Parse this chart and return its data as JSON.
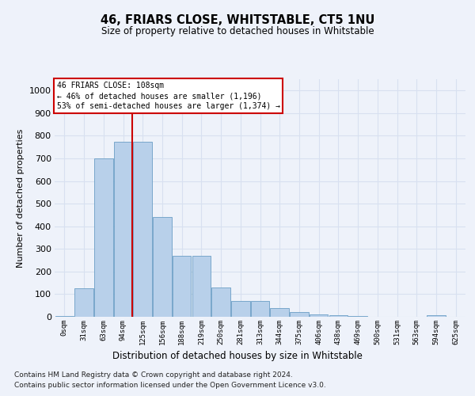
{
  "title": "46, FRIARS CLOSE, WHITSTABLE, CT5 1NU",
  "subtitle": "Size of property relative to detached houses in Whitstable",
  "xlabel": "Distribution of detached houses by size in Whitstable",
  "ylabel": "Number of detached properties",
  "bar_labels": [
    "0sqm",
    "31sqm",
    "63sqm",
    "94sqm",
    "125sqm",
    "156sqm",
    "188sqm",
    "219sqm",
    "250sqm",
    "281sqm",
    "313sqm",
    "344sqm",
    "375sqm",
    "406sqm",
    "438sqm",
    "469sqm",
    "500sqm",
    "531sqm",
    "563sqm",
    "594sqm",
    "625sqm"
  ],
  "bar_values": [
    5,
    125,
    700,
    775,
    775,
    440,
    270,
    270,
    130,
    70,
    70,
    38,
    20,
    10,
    8,
    5,
    0,
    0,
    0,
    8,
    0
  ],
  "bar_color": "#b8d0ea",
  "bar_edge_color": "#6a9ec5",
  "property_line_label": "46 FRIARS CLOSE: 108sqm",
  "annotation_line1": "← 46% of detached houses are smaller (1,196)",
  "annotation_line2": "53% of semi-detached houses are larger (1,374) →",
  "vline_color": "#cc0000",
  "annotation_box_color": "#ffffff",
  "annotation_box_edge": "#cc0000",
  "ylim": [
    0,
    1050
  ],
  "yticks": [
    0,
    100,
    200,
    300,
    400,
    500,
    600,
    700,
    800,
    900,
    1000
  ],
  "bg_color": "#eef2fa",
  "grid_color": "#d8e0f0",
  "footer1": "Contains HM Land Registry data © Crown copyright and database right 2024.",
  "footer2": "Contains public sector information licensed under the Open Government Licence v3.0."
}
